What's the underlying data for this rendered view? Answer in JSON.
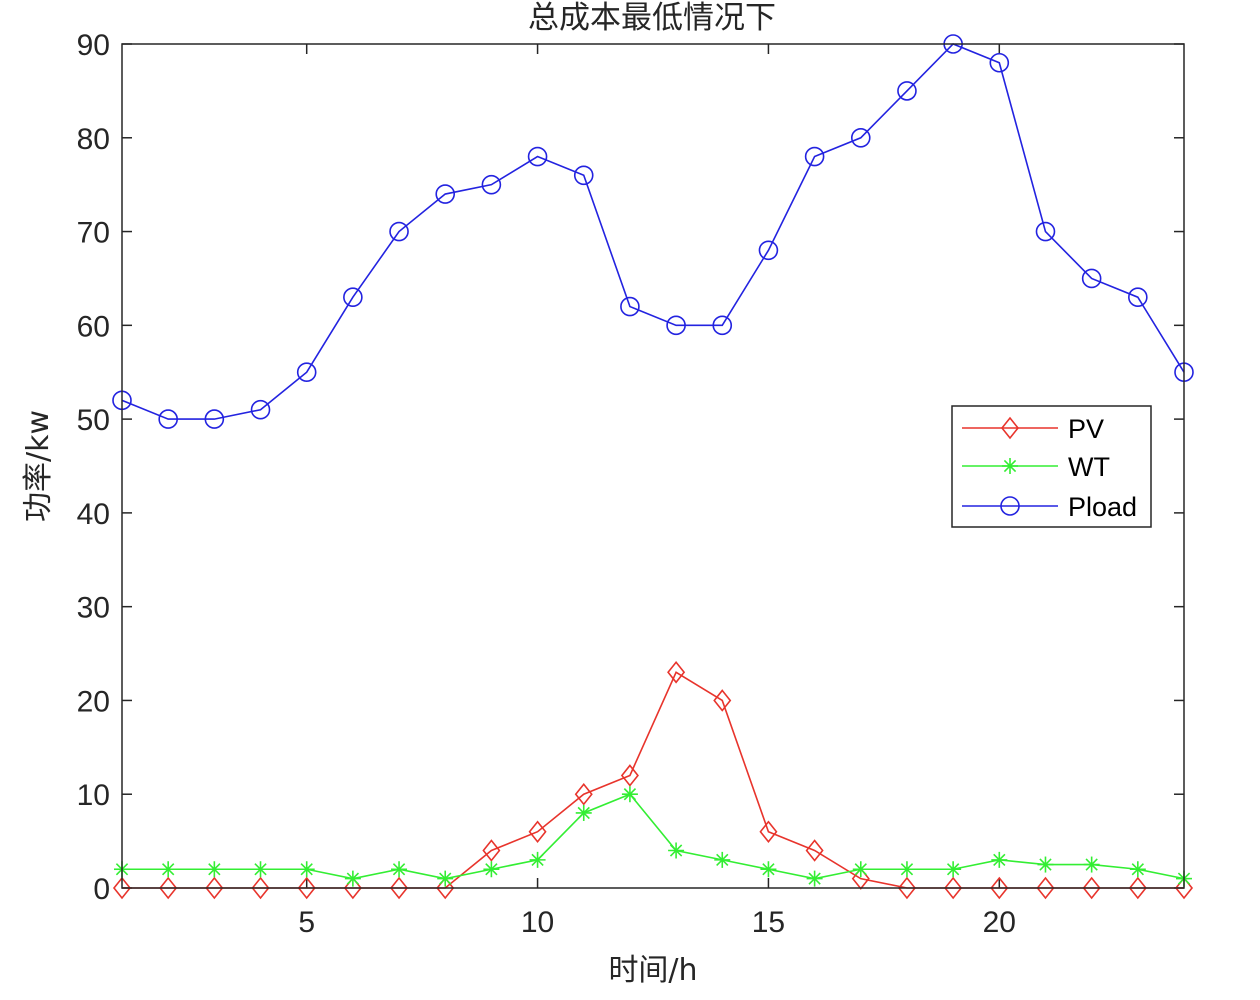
{
  "chart_data": {
    "type": "line",
    "title": "总成本最低情况下",
    "xlabel": "时间/h",
    "ylabel": "功率/kw",
    "xlim": [
      1,
      24
    ],
    "ylim": [
      0,
      90
    ],
    "xticks": [
      5,
      10,
      15,
      20
    ],
    "yticks": [
      0,
      10,
      20,
      30,
      40,
      50,
      60,
      70,
      80,
      90
    ],
    "grid": false,
    "legend_position": "right",
    "x": [
      1,
      2,
      3,
      4,
      5,
      6,
      7,
      8,
      9,
      10,
      11,
      12,
      13,
      14,
      15,
      16,
      17,
      18,
      19,
      20,
      21,
      22,
      23,
      24
    ],
    "series": [
      {
        "name": "PV",
        "color": "#e8342c",
        "marker": "diamond",
        "values": [
          0,
          0,
          0,
          0,
          0,
          0,
          0,
          0,
          4,
          6,
          10,
          12,
          23,
          20,
          6,
          4,
          1,
          0,
          0,
          0,
          0,
          0,
          0,
          0
        ]
      },
      {
        "name": "WT",
        "color": "#33ee33",
        "marker": "asterisk",
        "values": [
          2,
          2,
          2,
          2,
          2,
          1,
          2,
          1,
          2,
          3,
          8,
          10,
          4,
          3,
          2,
          1,
          2,
          2,
          2,
          3,
          2.5,
          2.5,
          2,
          1
        ]
      },
      {
        "name": "Pload",
        "color": "#2323e0",
        "marker": "circle",
        "values": [
          52,
          50,
          50,
          51,
          55,
          63,
          70,
          74,
          75,
          78,
          76,
          62,
          60,
          60,
          68,
          78,
          80,
          85,
          90,
          88,
          70,
          65,
          63,
          55
        ]
      }
    ]
  }
}
